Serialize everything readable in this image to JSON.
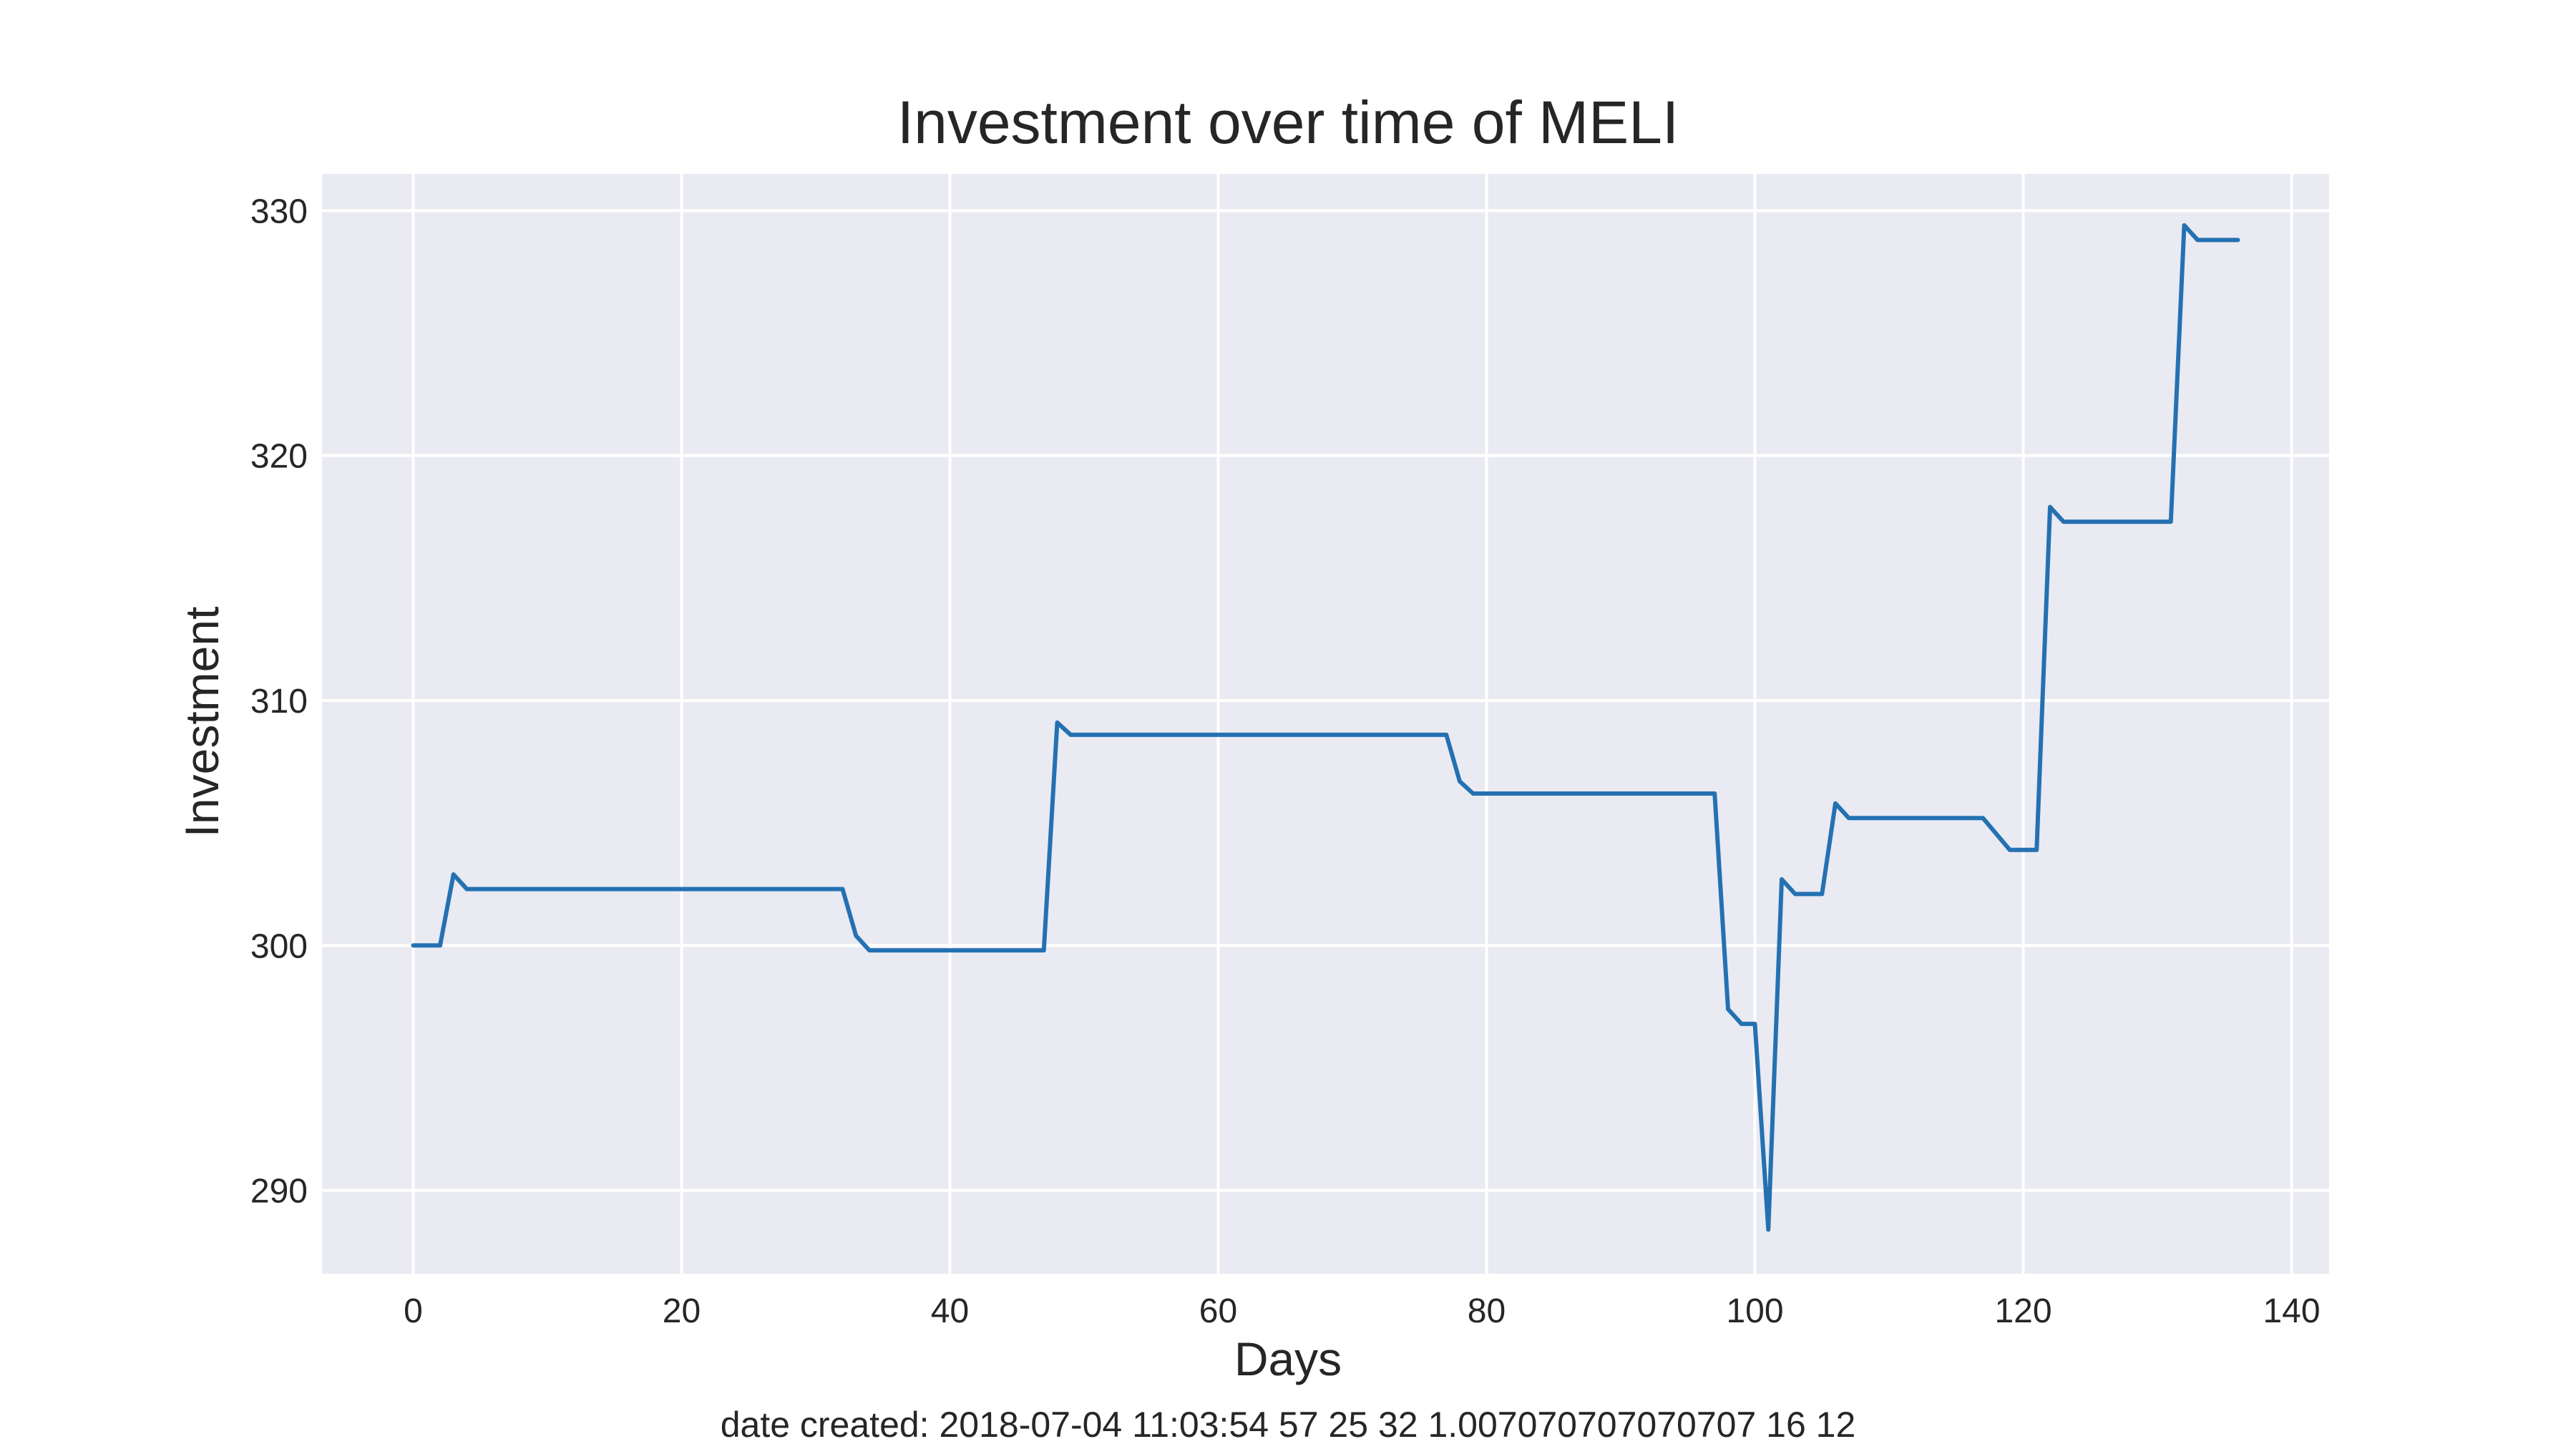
{
  "chart_data": {
    "type": "line",
    "title": "Investment over time of MELI",
    "xlabel": "Days",
    "ylabel": "Investment",
    "xlim": [
      -6.8,
      142.8
    ],
    "ylim": [
      286.6,
      331.5
    ],
    "xticks": [
      0,
      20,
      40,
      60,
      80,
      100,
      120,
      140
    ],
    "yticks": [
      290,
      300,
      310,
      320,
      330
    ],
    "grid": true,
    "series": [
      {
        "color": "#2471b2",
        "points": [
          [
            0,
            300.0
          ],
          [
            2,
            300.0
          ],
          [
            3,
            302.9
          ],
          [
            4,
            302.3
          ],
          [
            32,
            302.3
          ],
          [
            33,
            300.4
          ],
          [
            34,
            299.8
          ],
          [
            47,
            299.8
          ],
          [
            48,
            309.1
          ],
          [
            49,
            308.6
          ],
          [
            77,
            308.6
          ],
          [
            78,
            306.7
          ],
          [
            79,
            306.2
          ],
          [
            97,
            306.2
          ],
          [
            98,
            297.4
          ],
          [
            99,
            296.8
          ],
          [
            100,
            296.8
          ],
          [
            101,
            288.4
          ],
          [
            102,
            302.7
          ],
          [
            103,
            302.1
          ],
          [
            105,
            302.1
          ],
          [
            106,
            305.8
          ],
          [
            107,
            305.2
          ],
          [
            117,
            305.2
          ],
          [
            119,
            303.9
          ],
          [
            121,
            303.9
          ],
          [
            122,
            317.9
          ],
          [
            123,
            317.3
          ],
          [
            131,
            317.3
          ],
          [
            132,
            329.4
          ],
          [
            133,
            328.8
          ],
          [
            136,
            328.8
          ]
        ]
      }
    ]
  },
  "footer": {
    "text": "date created: 2018-07-04 11:03:54 57 25 32 1.007070707070707 16 12"
  },
  "colors": {
    "plot_background": "#eaeaf2",
    "grid": "#ffffff",
    "line": "#2471b2"
  }
}
